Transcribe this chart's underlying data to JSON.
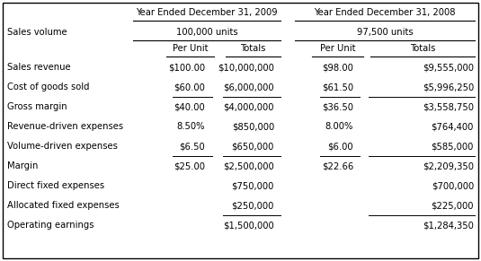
{
  "title_2009": "Year Ended December 31, 2009",
  "title_2008": "Year Ended December 31, 2008",
  "units_2009": "100,000 units",
  "units_2008": "97,500 units",
  "col_headers": [
    "Per Unit",
    "Totals",
    "Per Unit",
    "Totals"
  ],
  "row_label_col": "Sales volume",
  "rows": [
    {
      "label": "Sales revenue",
      "pu09": "$100.00",
      "tot09": "$10,000,000",
      "pu08": "$98.00",
      "tot08": "$9,555,000",
      "ul_pu09": false,
      "ul_tot09": false,
      "ul_pu08": false,
      "ul_tot08": false
    },
    {
      "label": "Cost of goods sold",
      "pu09": "$60.00",
      "tot09": "$6,000,000",
      "pu08": "$61.50",
      "tot08": "$5,996,250",
      "ul_pu09": true,
      "ul_tot09": true,
      "ul_pu08": true,
      "ul_tot08": true
    },
    {
      "label": "Gross margin",
      "pu09": "$40.00",
      "tot09": "$4,000,000",
      "pu08": "$36.50",
      "tot08": "$3,558,750",
      "ul_pu09": false,
      "ul_tot09": false,
      "ul_pu08": false,
      "ul_tot08": false
    },
    {
      "label": "Revenue-driven expenses",
      "pu09": "8.50%",
      "tot09": "$850,000",
      "pu08": "8.00%",
      "tot08": "$764,400",
      "ul_pu09": false,
      "ul_tot09": false,
      "ul_pu08": false,
      "ul_tot08": false
    },
    {
      "label": "Volume-driven expenses",
      "pu09": "$6.50",
      "tot09": "$650,000",
      "pu08": "$6.00",
      "tot08": "$585,000",
      "ul_pu09": true,
      "ul_tot09": true,
      "ul_pu08": true,
      "ul_tot08": true
    },
    {
      "label": "Margin",
      "pu09": "$25.00",
      "tot09": "$2,500,000",
      "pu08": "$22.66",
      "tot08": "$2,209,350",
      "ul_pu09": false,
      "ul_tot09": false,
      "ul_pu08": false,
      "ul_tot08": false
    },
    {
      "label": "Direct fixed expenses",
      "pu09": "",
      "tot09": "$750,000",
      "pu08": "",
      "tot08": "$700,000",
      "ul_pu09": false,
      "ul_tot09": false,
      "ul_pu08": false,
      "ul_tot08": false
    },
    {
      "label": "Allocated fixed expenses",
      "pu09": "",
      "tot09": "$250,000",
      "pu08": "",
      "tot08": "$225,000",
      "ul_pu09": false,
      "ul_tot09": true,
      "ul_pu08": false,
      "ul_tot08": true
    },
    {
      "label": "Operating earnings",
      "pu09": "",
      "tot09": "$1,500,000",
      "pu08": "",
      "tot08": "$1,284,350",
      "ul_pu09": false,
      "ul_tot09": false,
      "ul_pu08": false,
      "ul_tot08": false
    }
  ],
  "bg_color": "#ffffff",
  "border_color": "#000000",
  "text_color": "#000000",
  "font_size": 7.2,
  "font_name": "DejaVu Sans"
}
